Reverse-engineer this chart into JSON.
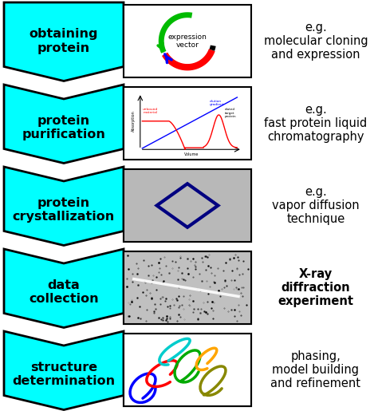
{
  "steps": [
    {
      "label": "obtaining\nprotein",
      "desc": "e.g.\nmolecular cloning\nand expression"
    },
    {
      "label": "protein\npurification",
      "desc": "e.g.\nfast protein liquid\nchromatography"
    },
    {
      "label": "protein\ncrystallization",
      "desc": "e.g.\nvapor diffusion\ntechnique"
    },
    {
      "label": "data\ncollection",
      "desc": "X-ray\ndiffraction\nexperiment"
    },
    {
      "label": "structure\ndetermination",
      "desc": "phasing,\nmodel building\nand refinement"
    }
  ],
  "arrow_color": "#00FFFF",
  "arrow_edge_color": "#000000",
  "text_color": "#000000",
  "bg_color": "#ffffff",
  "label_fontsize": 11.5,
  "desc_fontsize": 10.5,
  "n_steps": 5,
  "fig_width": 4.74,
  "fig_height": 5.15
}
